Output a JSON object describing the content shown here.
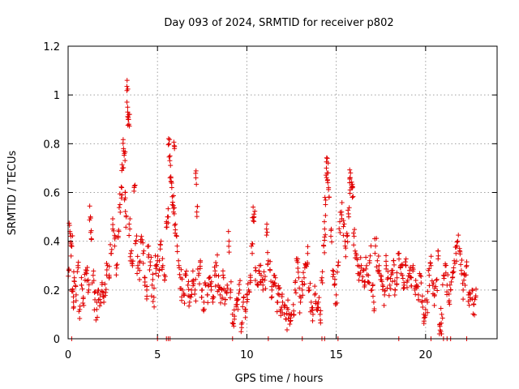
{
  "chart_data": {
    "type": "scatter",
    "title": "Day 093 of 2024, SRMTID for receiver p802",
    "xlabel": "GPS time / hours",
    "ylabel": "SRMTID / TECUs",
    "xlim": [
      0,
      24
    ],
    "ylim": [
      0,
      1.2
    ],
    "xticks": [
      0,
      5,
      10,
      15,
      20
    ],
    "xtick_labels": [
      "0",
      "5",
      "10",
      "15",
      "20"
    ],
    "yticks": [
      0,
      0.2,
      0.4,
      0.6,
      0.8,
      1.0,
      1.2
    ],
    "ytick_labels": [
      "0",
      "0.2",
      "0.4",
      "0.6",
      "0.8",
      "1",
      "1.2"
    ],
    "grid": true,
    "marker": "+",
    "color": "#e00000",
    "series": [
      {
        "name": "SRMTID",
        "points": [
          [
            0.05,
            0.28
          ],
          [
            0.1,
            0.44
          ],
          [
            0.15,
            0.42
          ],
          [
            0.2,
            0.38
          ],
          [
            0.25,
            0.2
          ],
          [
            0.3,
            0.15
          ],
          [
            0.35,
            0.25
          ],
          [
            0.45,
            0.18
          ],
          [
            0.55,
            0.3
          ],
          [
            0.65,
            0.12
          ],
          [
            0.75,
            0.22
          ],
          [
            0.85,
            0.17
          ],
          [
            0.95,
            0.24
          ],
          [
            1.05,
            0.28
          ],
          [
            1.15,
            0.2
          ],
          [
            1.25,
            0.5
          ],
          [
            1.3,
            0.41
          ],
          [
            1.4,
            0.26
          ],
          [
            1.5,
            0.16
          ],
          [
            1.6,
            0.12
          ],
          [
            1.7,
            0.2
          ],
          [
            1.8,
            0.18
          ],
          [
            1.9,
            0.23
          ],
          [
            2.0,
            0.15
          ],
          [
            2.1,
            0.19
          ],
          [
            2.2,
            0.3
          ],
          [
            2.3,
            0.26
          ],
          [
            2.4,
            0.35
          ],
          [
            2.5,
            0.45
          ],
          [
            2.6,
            0.38
          ],
          [
            2.7,
            0.3
          ],
          [
            2.8,
            0.42
          ],
          [
            2.9,
            0.55
          ],
          [
            3.0,
            0.62
          ],
          [
            3.05,
            0.7
          ],
          [
            3.1,
            0.78
          ],
          [
            3.15,
            0.76
          ],
          [
            3.2,
            0.6
          ],
          [
            3.25,
            0.5
          ],
          [
            3.3,
            1.06
          ],
          [
            3.33,
            0.95
          ],
          [
            3.36,
            0.9
          ],
          [
            3.4,
            0.88
          ],
          [
            3.45,
            0.45
          ],
          [
            3.5,
            0.35
          ],
          [
            3.6,
            0.3
          ],
          [
            3.7,
            0.62
          ],
          [
            3.8,
            0.4
          ],
          [
            3.9,
            0.3
          ],
          [
            4.0,
            0.28
          ],
          [
            4.1,
            0.42
          ],
          [
            4.2,
            0.35
          ],
          [
            4.3,
            0.25
          ],
          [
            4.4,
            0.2
          ],
          [
            4.5,
            0.38
          ],
          [
            4.6,
            0.3
          ],
          [
            4.7,
            0.22
          ],
          [
            4.8,
            0.17
          ],
          [
            4.9,
            0.3
          ],
          [
            5.0,
            0.32
          ],
          [
            5.1,
            0.28
          ],
          [
            5.2,
            0.4
          ],
          [
            5.3,
            0.3
          ],
          [
            5.4,
            0.24
          ],
          [
            5.5,
            0.48
          ],
          [
            5.6,
            0.5
          ],
          [
            5.65,
            0.8
          ],
          [
            5.7,
            0.75
          ],
          [
            5.75,
            0.66
          ],
          [
            5.8,
            0.62
          ],
          [
            5.85,
            0.56
          ],
          [
            5.9,
            0.52
          ],
          [
            5.95,
            0.78
          ],
          [
            6.0,
            0.47
          ],
          [
            6.1,
            0.38
          ],
          [
            6.2,
            0.3
          ],
          [
            6.3,
            0.25
          ],
          [
            6.4,
            0.2
          ],
          [
            6.5,
            0.18
          ],
          [
            6.6,
            0.26
          ],
          [
            6.7,
            0.22
          ],
          [
            6.8,
            0.15
          ],
          [
            6.9,
            0.2
          ],
          [
            7.0,
            0.24
          ],
          [
            7.1,
            0.2
          ],
          [
            7.15,
            0.66
          ],
          [
            7.2,
            0.52
          ],
          [
            7.3,
            0.26
          ],
          [
            7.4,
            0.32
          ],
          [
            7.5,
            0.2
          ],
          [
            7.6,
            0.15
          ],
          [
            7.7,
            0.22
          ],
          [
            7.8,
            0.18
          ],
          [
            7.9,
            0.25
          ],
          [
            8.0,
            0.2
          ],
          [
            8.1,
            0.15
          ],
          [
            8.2,
            0.26
          ],
          [
            8.3,
            0.3
          ],
          [
            8.4,
            0.22
          ],
          [
            8.5,
            0.18
          ],
          [
            8.6,
            0.2
          ],
          [
            8.7,
            0.25
          ],
          [
            8.8,
            0.16
          ],
          [
            8.9,
            0.22
          ],
          [
            9.0,
            0.4
          ],
          [
            9.1,
            0.2
          ],
          [
            9.2,
            0.1
          ],
          [
            9.3,
            0.08
          ],
          [
            9.4,
            0.14
          ],
          [
            9.5,
            0.12
          ],
          [
            9.6,
            0.2
          ],
          [
            9.7,
            0.06
          ],
          [
            9.8,
            0.15
          ],
          [
            9.9,
            0.12
          ],
          [
            10.0,
            0.18
          ],
          [
            10.1,
            0.2
          ],
          [
            10.2,
            0.26
          ],
          [
            10.3,
            0.35
          ],
          [
            10.35,
            0.54
          ],
          [
            10.4,
            0.5
          ],
          [
            10.5,
            0.28
          ],
          [
            10.6,
            0.22
          ],
          [
            10.7,
            0.3
          ],
          [
            10.8,
            0.26
          ],
          [
            10.9,
            0.2
          ],
          [
            11.0,
            0.24
          ],
          [
            11.1,
            0.45
          ],
          [
            11.2,
            0.32
          ],
          [
            11.3,
            0.28
          ],
          [
            11.4,
            0.2
          ],
          [
            11.5,
            0.22
          ],
          [
            11.6,
            0.25
          ],
          [
            11.7,
            0.15
          ],
          [
            11.8,
            0.18
          ],
          [
            11.9,
            0.12
          ],
          [
            12.0,
            0.15
          ],
          [
            12.1,
            0.1
          ],
          [
            12.2,
            0.08
          ],
          [
            12.3,
            0.12
          ],
          [
            12.4,
            0.06
          ],
          [
            12.5,
            0.1
          ],
          [
            12.6,
            0.14
          ],
          [
            12.7,
            0.2
          ],
          [
            12.8,
            0.32
          ],
          [
            12.9,
            0.25
          ],
          [
            13.0,
            0.15
          ],
          [
            13.1,
            0.2
          ],
          [
            13.2,
            0.25
          ],
          [
            13.3,
            0.3
          ],
          [
            13.4,
            0.35
          ],
          [
            13.5,
            0.2
          ],
          [
            13.6,
            0.15
          ],
          [
            13.7,
            0.1
          ],
          [
            13.8,
            0.18
          ],
          [
            13.9,
            0.12
          ],
          [
            14.0,
            0.15
          ],
          [
            14.1,
            0.1
          ],
          [
            14.2,
            0.25
          ],
          [
            14.3,
            0.38
          ],
          [
            14.35,
            0.45
          ],
          [
            14.4,
            0.55
          ],
          [
            14.45,
            0.7
          ],
          [
            14.5,
            0.74
          ],
          [
            14.55,
            0.68
          ],
          [
            14.6,
            0.58
          ],
          [
            14.7,
            0.42
          ],
          [
            14.8,
            0.28
          ],
          [
            14.9,
            0.22
          ],
          [
            15.0,
            0.18
          ],
          [
            15.1,
            0.3
          ],
          [
            15.2,
            0.48
          ],
          [
            15.3,
            0.52
          ],
          [
            15.4,
            0.46
          ],
          [
            15.5,
            0.38
          ],
          [
            15.6,
            0.42
          ],
          [
            15.7,
            0.5
          ],
          [
            15.75,
            0.64
          ],
          [
            15.8,
            0.68
          ],
          [
            15.85,
            0.62
          ],
          [
            15.9,
            0.58
          ],
          [
            16.0,
            0.42
          ],
          [
            16.1,
            0.35
          ],
          [
            16.2,
            0.3
          ],
          [
            16.3,
            0.26
          ],
          [
            16.4,
            0.3
          ],
          [
            16.5,
            0.28
          ],
          [
            16.6,
            0.22
          ],
          [
            16.7,
            0.3
          ],
          [
            16.8,
            0.26
          ],
          [
            16.9,
            0.34
          ],
          [
            17.0,
            0.2
          ],
          [
            17.1,
            0.15
          ],
          [
            17.2,
            0.38
          ],
          [
            17.3,
            0.32
          ],
          [
            17.4,
            0.3
          ],
          [
            17.5,
            0.26
          ],
          [
            17.6,
            0.22
          ],
          [
            17.7,
            0.18
          ],
          [
            17.8,
            0.3
          ],
          [
            17.9,
            0.25
          ],
          [
            18.0,
            0.22
          ],
          [
            18.1,
            0.28
          ],
          [
            18.2,
            0.32
          ],
          [
            18.3,
            0.2
          ],
          [
            18.4,
            0.25
          ],
          [
            18.5,
            0.35
          ],
          [
            18.6,
            0.3
          ],
          [
            18.7,
            0.26
          ],
          [
            18.8,
            0.22
          ],
          [
            18.9,
            0.3
          ],
          [
            19.0,
            0.24
          ],
          [
            19.1,
            0.28
          ],
          [
            19.2,
            0.25
          ],
          [
            19.3,
            0.3
          ],
          [
            19.4,
            0.2
          ],
          [
            19.5,
            0.22
          ],
          [
            19.6,
            0.18
          ],
          [
            19.7,
            0.26
          ],
          [
            19.8,
            0.15
          ],
          [
            19.9,
            0.1
          ],
          [
            20.0,
            0.12
          ],
          [
            20.1,
            0.15
          ],
          [
            20.2,
            0.26
          ],
          [
            20.3,
            0.3
          ],
          [
            20.4,
            0.22
          ],
          [
            20.5,
            0.18
          ],
          [
            20.6,
            0.24
          ],
          [
            20.7,
            0.36
          ],
          [
            20.8,
            0.06
          ],
          [
            20.85,
            0.03
          ],
          [
            20.9,
            0.1
          ],
          [
            21.0,
            0.26
          ],
          [
            21.1,
            0.3
          ],
          [
            21.2,
            0.22
          ],
          [
            21.3,
            0.15
          ],
          [
            21.4,
            0.2
          ],
          [
            21.5,
            0.25
          ],
          [
            21.6,
            0.32
          ],
          [
            21.7,
            0.35
          ],
          [
            21.8,
            0.4
          ],
          [
            21.9,
            0.37
          ],
          [
            22.0,
            0.28
          ],
          [
            22.1,
            0.2
          ],
          [
            22.2,
            0.26
          ],
          [
            22.3,
            0.3
          ],
          [
            22.4,
            0.18
          ],
          [
            22.5,
            0.16
          ],
          [
            22.6,
            0.2
          ],
          [
            22.7,
            0.14
          ],
          [
            22.8,
            0.17
          ]
        ]
      }
    ],
    "zero_points_x": [
      0.2,
      5.0,
      5.5,
      5.6,
      5.7,
      9.2,
      11.2,
      13.1,
      14.2,
      14.35,
      15.1,
      18.5,
      20.3,
      21.0,
      21.2,
      21.4,
      22.3
    ]
  }
}
